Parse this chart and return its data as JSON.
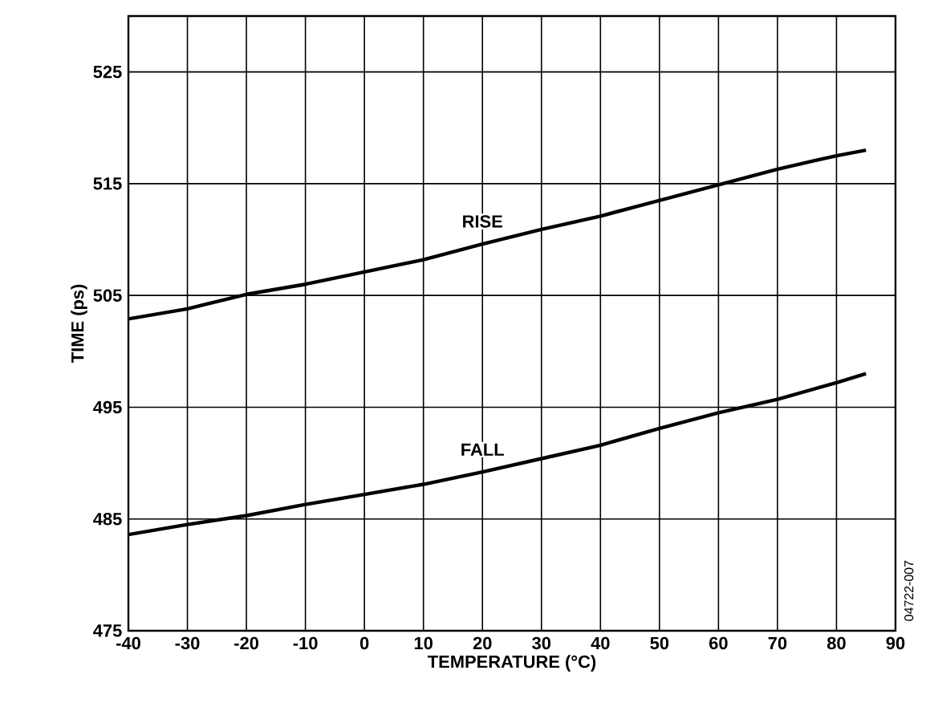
{
  "chart_data": {
    "type": "line",
    "xlabel": "TEMPERATURE (°C)",
    "ylabel": "TIME (ps)",
    "annotations": [
      "04722-007"
    ],
    "xlim": [
      -40,
      90
    ],
    "xticks": [
      -40,
      -30,
      -20,
      -10,
      0,
      10,
      20,
      30,
      40,
      50,
      60,
      70,
      80,
      90
    ],
    "ylim": [
      475,
      530
    ],
    "yticks": [
      475,
      485,
      495,
      505,
      515,
      525
    ],
    "grid": true,
    "legend": false,
    "marker": "none",
    "line_style": "solid",
    "x": [
      -40,
      -30,
      -20,
      -10,
      0,
      10,
      20,
      30,
      40,
      50,
      60,
      70,
      80,
      85
    ],
    "series": [
      {
        "name": "RISE",
        "color": "#000000",
        "values": [
          502.9,
          503.8,
          505.1,
          506.0,
          507.1,
          508.2,
          509.6,
          510.9,
          512.1,
          513.5,
          514.9,
          516.3,
          517.5,
          518.0
        ]
      },
      {
        "name": "FALL",
        "color": "#000000",
        "values": [
          483.6,
          484.5,
          485.3,
          486.3,
          487.2,
          488.1,
          489.2,
          490.4,
          491.6,
          493.1,
          494.5,
          495.7,
          497.2,
          498.0
        ]
      }
    ]
  }
}
